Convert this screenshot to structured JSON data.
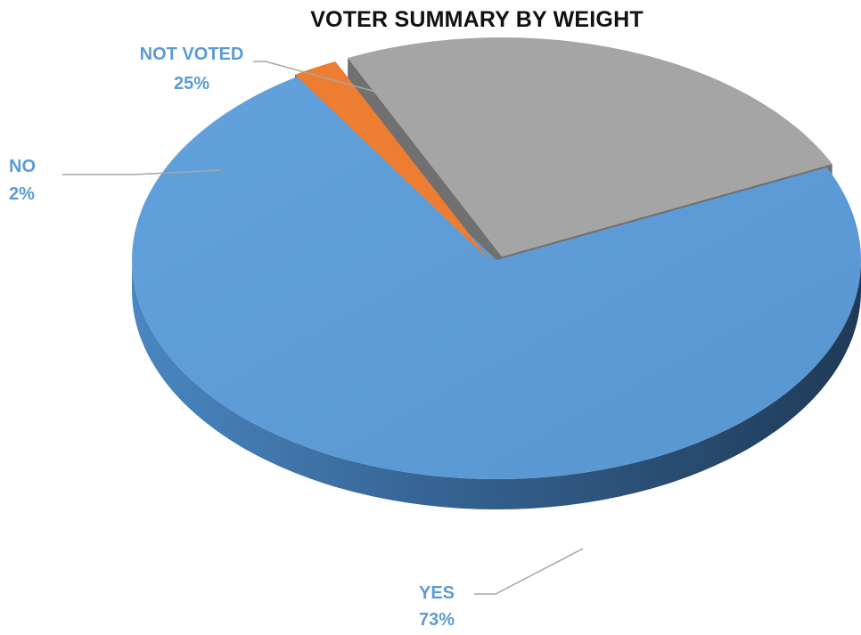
{
  "chart_data": {
    "type": "pie",
    "title": "VOTER SUMMARY BY WEIGHT",
    "slices": [
      {
        "label": "YES",
        "value": 73,
        "value_label": "73%",
        "color": "#5b9bd5"
      },
      {
        "label": "NO",
        "value": 2,
        "value_label": "2%",
        "color": "#ed7d31"
      },
      {
        "label": "NOT VOTED",
        "value": 25,
        "value_label": "25%",
        "color": "#a5a5a5"
      }
    ],
    "label_color": "#5b9bd5",
    "leader_line_color": "#a6a6a6",
    "style": "3d-exploded"
  }
}
